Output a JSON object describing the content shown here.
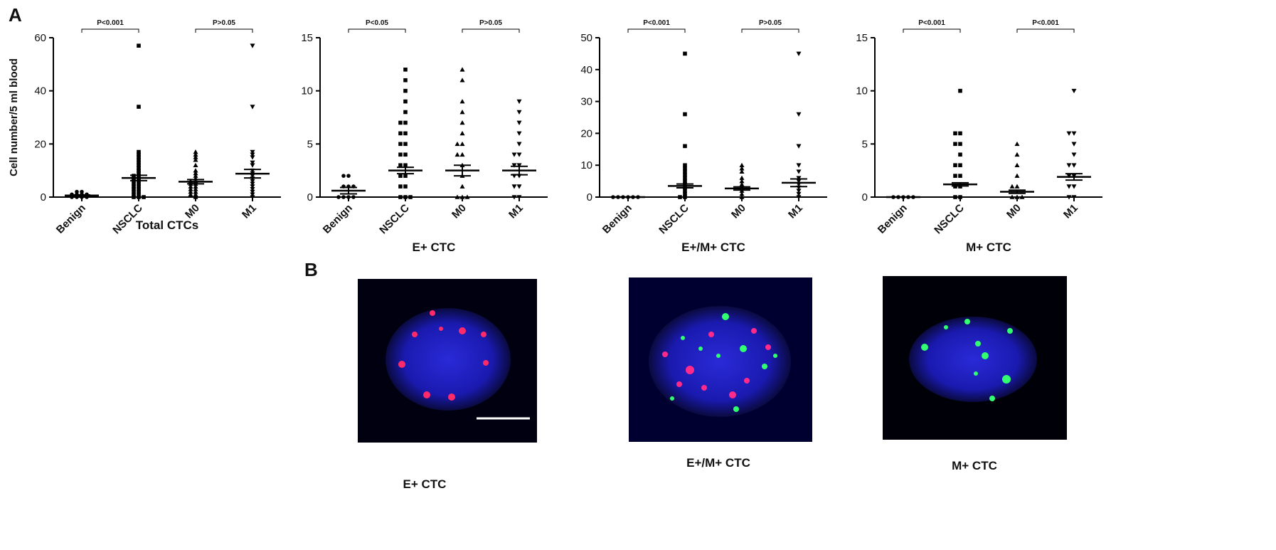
{
  "figure": {
    "panel_labels": [
      "A",
      "B"
    ],
    "images": [
      {
        "caption": "E+ CTC"
      },
      {
        "caption": "E+/M+ CTC"
      },
      {
        "caption": "M+ CTC"
      }
    ]
  },
  "chart_data": [
    {
      "type": "dot",
      "title": "Total CTCs",
      "y_label": "Cell number/5 ml blood",
      "categories": [
        "Benign",
        "NSCLC",
        "M0",
        "M1"
      ],
      "markers": [
        "circle",
        "square",
        "triangle",
        "triangle-down"
      ],
      "color": "#000000",
      "points": [
        [
          0,
          0,
          0,
          1,
          1,
          1,
          2,
          2,
          0,
          1
        ],
        [
          57,
          34,
          17,
          16,
          15,
          14,
          13,
          12,
          11,
          10,
          9,
          8,
          8,
          7,
          7,
          6,
          6,
          5,
          5,
          4,
          4,
          3,
          3,
          2,
          2,
          1,
          1,
          0,
          0,
          0
        ],
        [
          17,
          16,
          15,
          14,
          12,
          10,
          9,
          8,
          7,
          6,
          6,
          5,
          5,
          4,
          4,
          3,
          3,
          2,
          2,
          1,
          1,
          0
        ],
        [
          57,
          34,
          17,
          16,
          15,
          13,
          12,
          10,
          9,
          8,
          7,
          6,
          5,
          4,
          3,
          2,
          1,
          0
        ]
      ],
      "means": [
        0.6,
        7.2,
        5.8,
        8.8
      ],
      "sem": [
        0.2,
        1.0,
        0.8,
        1.6
      ],
      "annotations": [
        "P<0.001",
        "P>0.05"
      ],
      "ylim": [
        0,
        60
      ],
      "yticks": [
        0,
        20,
        40,
        60
      ]
    },
    {
      "type": "dot",
      "title": "E+ CTC",
      "categories": [
        "Benign",
        "NSCLC",
        "M0",
        "M1"
      ],
      "markers": [
        "circle",
        "square",
        "triangle",
        "triangle-down"
      ],
      "color": "#000000",
      "points": [
        [
          2,
          2,
          1,
          1,
          0,
          0,
          0,
          1,
          0
        ],
        [
          12,
          11,
          10,
          9,
          8,
          7,
          7,
          6,
          6,
          5,
          5,
          4,
          4,
          3,
          3,
          2,
          2,
          1,
          1,
          0,
          0,
          0
        ],
        [
          12,
          11,
          9,
          8,
          7,
          6,
          5,
          5,
          4,
          4,
          3,
          2,
          1,
          0,
          0,
          0
        ],
        [
          9,
          8,
          7,
          6,
          5,
          4,
          4,
          3,
          3,
          2,
          2,
          1,
          1,
          0,
          0
        ]
      ],
      "means": [
        0.6,
        2.5,
        2.5,
        2.5
      ],
      "sem": [
        0.3,
        0.3,
        0.5,
        0.4
      ],
      "annotations": [
        "P<0.05",
        "P>0.05"
      ],
      "ylim": [
        0,
        15
      ],
      "yticks": [
        0,
        5,
        10,
        15
      ]
    },
    {
      "type": "dot",
      "title": "E+/M+ CTC",
      "categories": [
        "Benign",
        "NSCLC",
        "M0",
        "M1"
      ],
      "markers": [
        "circle",
        "square",
        "triangle",
        "triangle-down"
      ],
      "color": "#000000",
      "points": [
        [
          0,
          0,
          0,
          0,
          0,
          0
        ],
        [
          45,
          26,
          16,
          10,
          9,
          8,
          7,
          6,
          5,
          4,
          3,
          2,
          1,
          0,
          0
        ],
        [
          10,
          9,
          8,
          6,
          5,
          4,
          3,
          2,
          1,
          0
        ],
        [
          45,
          26,
          16,
          10,
          8,
          6,
          5,
          4,
          3,
          2,
          1,
          0
        ]
      ],
      "means": [
        0,
        3.5,
        2.7,
        4.5
      ],
      "sem": [
        0,
        0.6,
        0.5,
        1.2
      ],
      "annotations": [
        "P<0.001",
        "P>0.05"
      ],
      "ylim": [
        0,
        50
      ],
      "yticks": [
        0,
        10,
        20,
        30,
        40,
        50
      ]
    },
    {
      "type": "dot",
      "title": "M+ CTC",
      "categories": [
        "Benign",
        "NSCLC",
        "M0",
        "M1"
      ],
      "markers": [
        "circle",
        "square",
        "triangle",
        "triangle-down"
      ],
      "color": "#000000",
      "points": [
        [
          0,
          0,
          0,
          0,
          0
        ],
        [
          10,
          6,
          6,
          5,
          5,
          4,
          3,
          3,
          2,
          2,
          1,
          1,
          0,
          0
        ],
        [
          5,
          4,
          3,
          2,
          1,
          1,
          0,
          0,
          0
        ],
        [
          10,
          6,
          6,
          5,
          4,
          3,
          3,
          2,
          2,
          1,
          1,
          0,
          0
        ]
      ],
      "means": [
        0,
        1.2,
        0.5,
        1.9
      ],
      "sem": [
        0,
        0.15,
        0.15,
        0.3
      ],
      "annotations": [
        "P<0.001",
        "P<0.001"
      ],
      "ylim": [
        0,
        15
      ],
      "yticks": [
        0,
        5,
        10,
        15
      ]
    }
  ]
}
